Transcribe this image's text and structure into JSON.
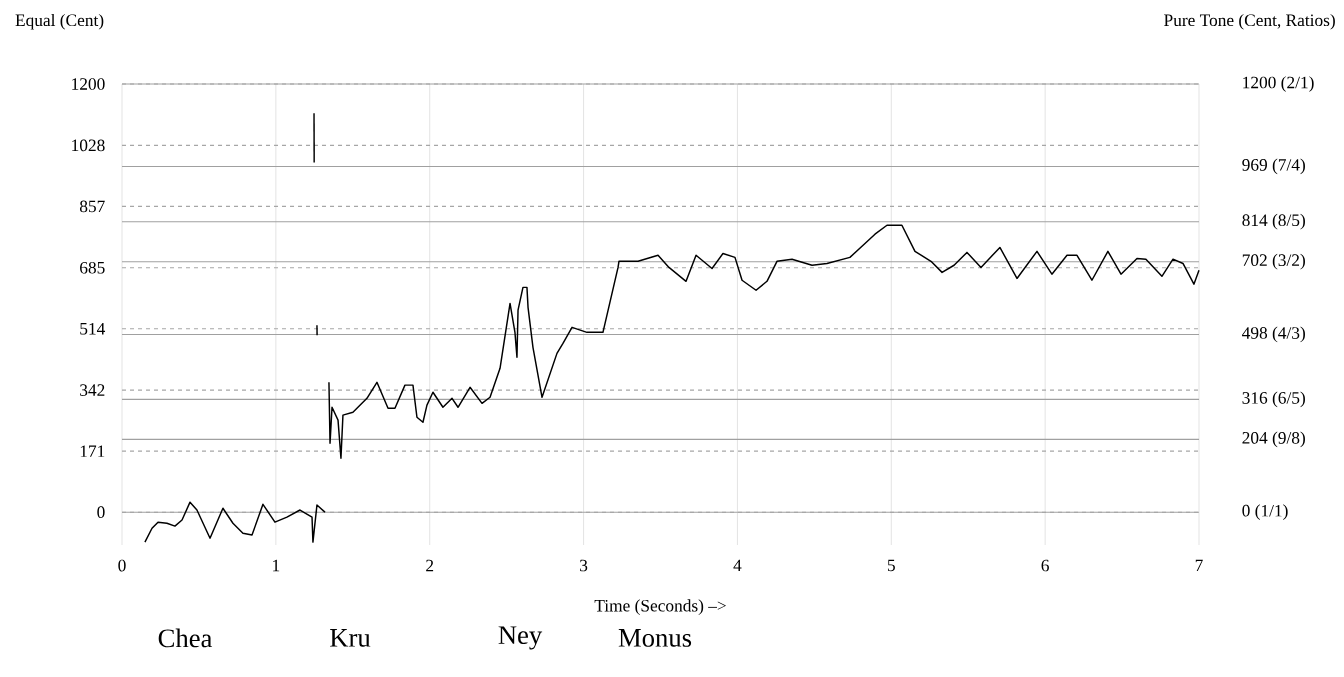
{
  "chart_data": {
    "type": "line",
    "xlabel": "Time (Seconds) –>",
    "ylabel": "Equal (Cent)",
    "y2label": "Pure Tone (Cent, Ratios)",
    "xlim": [
      0,
      7
    ],
    "xticks": [
      0,
      1,
      2,
      3,
      4,
      5,
      6,
      7
    ],
    "ylim": [
      -92,
      1200
    ],
    "yticks": [
      0,
      171,
      342,
      514,
      685,
      857,
      1028,
      1200
    ],
    "ref_lines": [
      {
        "axis": "y",
        "value": 0,
        "label": "0 (1/1)",
        "color": "#a0a0a0",
        "line_style": "solid"
      },
      {
        "axis": "y",
        "value": 204,
        "label": "204 (9/8)",
        "color": "#a0a0a0",
        "line_style": "solid"
      },
      {
        "axis": "y",
        "value": 316,
        "label": "316 (6/5)",
        "color": "#a0a0a0",
        "line_style": "solid"
      },
      {
        "axis": "y",
        "value": 498,
        "label": "498 (4/3)",
        "color": "#a0a0a0",
        "line_style": "solid"
      },
      {
        "axis": "y",
        "value": 702,
        "label": "702 (3/2)",
        "color": "#a0a0a0",
        "line_style": "solid"
      },
      {
        "axis": "y",
        "value": 814,
        "label": "814 (8/5)",
        "color": "#a0a0a0",
        "line_style": "solid"
      },
      {
        "axis": "y",
        "value": 969,
        "label": "969 (7/4)",
        "color": "#a0a0a0",
        "line_style": "solid"
      },
      {
        "axis": "y",
        "value": 1200,
        "label": "1200 (2/1)",
        "color": "#a0a0a0",
        "line_style": "solid"
      }
    ],
    "grid": true,
    "marker": "none",
    "line_style": "solid",
    "annotations": [
      "Chea",
      "Kru",
      "Ney",
      "Monus"
    ],
    "series": [
      {
        "color": "#000000",
        "x": [
          0.149,
          0.195,
          0.234,
          0.292,
          0.344,
          0.39,
          0.442,
          0.487,
          0.572,
          0.656,
          0.721,
          0.786,
          0.845,
          0.916,
          0.994,
          1.072,
          1.157,
          1.235,
          1.241,
          1.267,
          1.319
        ],
        "values": [
          -84,
          -45,
          -28,
          -31,
          -39,
          -22,
          28,
          6,
          -73,
          11,
          -31,
          -59,
          -64,
          22,
          -28,
          -14,
          6,
          -14,
          -84,
          20,
          0
        ]
      },
      {
        "color": "#000000",
        "x": [
          1.248,
          1.249
        ],
        "values": [
          1118,
          980
        ]
      },
      {
        "color": "#000000",
        "x": [
          1.267,
          1.268
        ],
        "values": [
          524,
          496
        ]
      },
      {
        "color": "#000000",
        "x": [
          1.345,
          1.352,
          1.365,
          1.404,
          1.423,
          1.436,
          1.501,
          1.592,
          1.657,
          1.729,
          1.774,
          1.839,
          1.891,
          1.917,
          1.956,
          1.982,
          2.021,
          2.086,
          2.145,
          2.184,
          2.262,
          2.34,
          2.392,
          2.457,
          2.522,
          2.554,
          2.567,
          2.574,
          2.606,
          2.632,
          2.639,
          2.671,
          2.73,
          2.827,
          2.866,
          2.925,
          3.022,
          3.126,
          3.224,
          3.23,
          3.354,
          3.484,
          3.555,
          3.666,
          3.731,
          3.835,
          3.906,
          3.984,
          4.03,
          4.121,
          4.192,
          4.257,
          4.355,
          4.485,
          4.582,
          4.731,
          4.829,
          4.894,
          4.972,
          5.069,
          5.154,
          5.258,
          5.33,
          5.408,
          5.492,
          5.583,
          5.706,
          5.817,
          5.947,
          6.044,
          6.142,
          6.207,
          6.304,
          6.408,
          6.493,
          6.597,
          6.655,
          6.759,
          6.831,
          6.896,
          6.967,
          7.0
        ],
        "values": [
          364,
          193,
          294,
          258,
          151,
          272,
          280,
          319,
          364,
          291,
          291,
          356,
          356,
          266,
          252,
          300,
          336,
          294,
          319,
          294,
          350,
          305,
          322,
          403,
          585,
          504,
          434,
          566,
          630,
          630,
          574,
          462,
          322,
          445,
          473,
          518,
          504,
          504,
          686,
          703,
          703,
          720,
          686,
          647,
          720,
          683,
          725,
          714,
          650,
          622,
          647,
          703,
          709,
          692,
          697,
          714,
          753,
          779,
          804,
          804,
          731,
          703,
          672,
          692,
          728,
          686,
          742,
          655,
          731,
          667,
          720,
          720,
          650,
          731,
          667,
          711,
          709,
          661,
          709,
          697,
          639,
          678
        ]
      }
    ]
  }
}
